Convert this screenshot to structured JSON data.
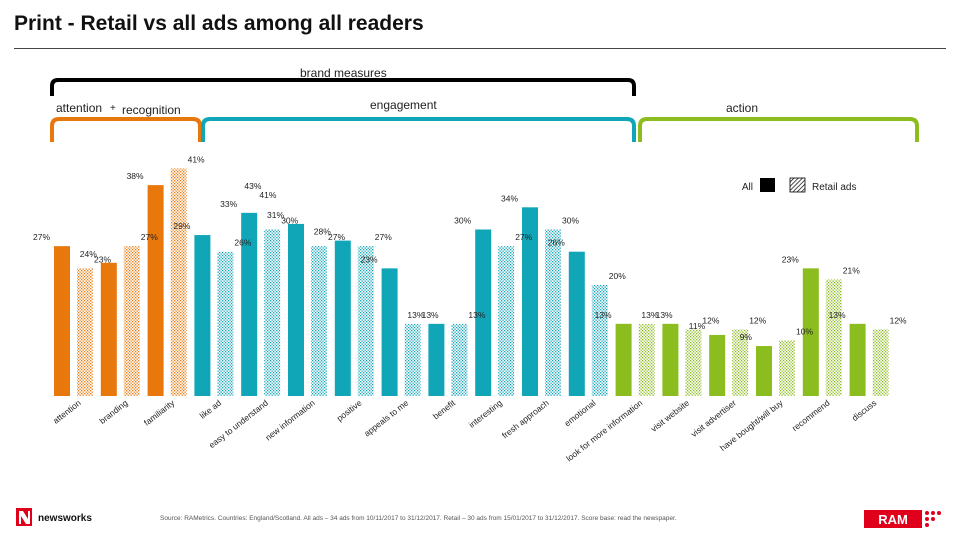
{
  "title": "Print - Retail vs all ads among all readers",
  "groups": {
    "brand_measures": "brand measures",
    "attention": "attention",
    "plus": "+",
    "recognition": "recognition",
    "engagement": "engagement",
    "action": "action"
  },
  "colors": {
    "attention_recognition": "#e8780c",
    "engagement": "#10a6b8",
    "action": "#8cbd1e",
    "bracket_black": "#000000"
  },
  "legend": {
    "all": "All",
    "retail": "Retail ads",
    "position": "top-right"
  },
  "source": "Source: RAMetrics. Countries: England/Scotland. All ads – 34 ads from 10/11/2017 to 31/12/2017. Retail – 30 ads from 15/01/2017 to 31/12/2017. Score base: read the newspaper.",
  "logos": {
    "left_text": "newsworks",
    "right_text": "RAM"
  },
  "chart_data": {
    "type": "bar",
    "title": "Print - Retail vs all ads among all readers",
    "categories": [
      "attention",
      "branding",
      "familiarity",
      "like ad",
      "easy to understand",
      "new information",
      "positive",
      "appeals to me",
      "benefit",
      "interesting",
      "fresh approach",
      "emotional",
      "look for more information",
      "visit website",
      "visit advertiser",
      "have bought/will buy",
      "recommend",
      "discuss"
    ],
    "category_groups": [
      "attention_recognition",
      "attention_recognition",
      "attention_recognition",
      "engagement",
      "engagement",
      "engagement",
      "engagement",
      "engagement",
      "engagement",
      "engagement",
      "engagement",
      "engagement",
      "action",
      "action",
      "action",
      "action",
      "action",
      "action"
    ],
    "series": [
      {
        "name": "All",
        "values": [
          27,
          24,
          38,
          29,
          33,
          31,
          28,
          23,
          13,
          30,
          34,
          26,
          13,
          13,
          11,
          9,
          23,
          13
        ]
      },
      {
        "name": "Retail ads",
        "values": [
          23,
          27,
          41,
          26,
          30,
          27,
          27,
          13,
          13,
          27,
          30,
          20,
          13,
          12,
          12,
          10,
          21,
          12
        ]
      }
    ],
    "value_labels": [
      [
        "27%",
        "24%",
        "38%",
        "29%",
        "33%",
        "31%",
        "28%",
        "23%",
        "13%",
        "30%",
        "34%",
        "26%",
        "13%",
        "13%",
        "11%",
        "9%",
        "23%",
        "13%"
      ],
      [
        "23%",
        "27%",
        "41%",
        "26%",
        "30%",
        "27%",
        "27%",
        "13%",
        "13%",
        "27%",
        "30%",
        "20%",
        "13%",
        "12%",
        "12%",
        "10%",
        "21%",
        "12%"
      ]
    ],
    "extra_labels": [
      {
        "text": "43%",
        "category_index": 3,
        "series_index": 0
      },
      {
        "text": "41%",
        "category_index": 3,
        "series_index": 1
      }
    ],
    "ylim": [
      0,
      48
    ],
    "grid": false
  }
}
